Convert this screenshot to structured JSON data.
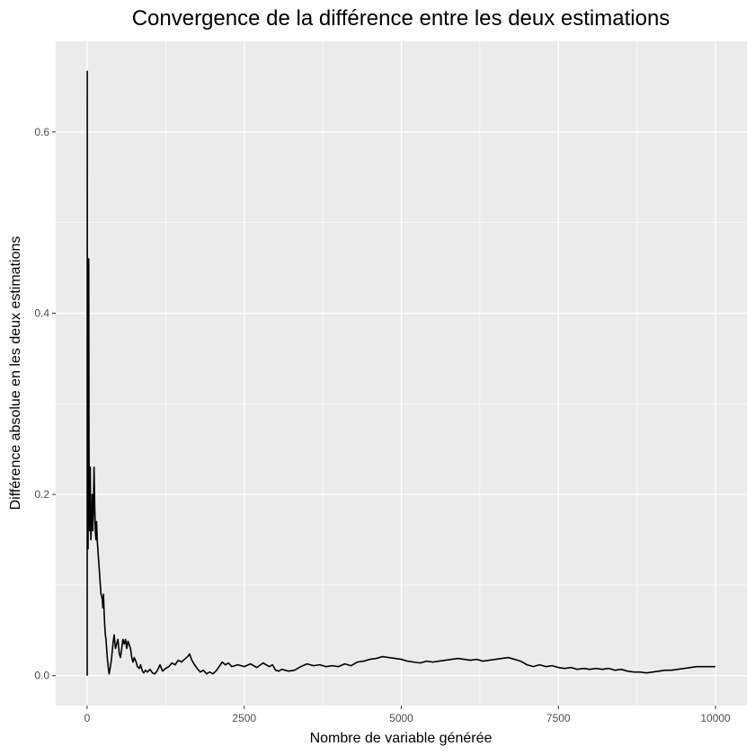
{
  "chart_data": {
    "type": "line",
    "title": "Convergence de la différence entre les deux estimations",
    "xlabel": "Nombre de variable générée",
    "ylabel": "Différence absolue en les deux estimations",
    "xlim": [
      -500,
      10500
    ],
    "ylim": [
      -0.033,
      0.7
    ],
    "x_ticks": [
      0,
      2500,
      5000,
      7500,
      10000
    ],
    "x_tick_labels": [
      "0",
      "2500",
      "5000",
      "7500",
      "10000"
    ],
    "y_ticks": [
      0.0,
      0.2,
      0.4,
      0.6
    ],
    "y_tick_labels": [
      "0.0",
      "0.2",
      "0.4",
      "0.6"
    ],
    "grid": true,
    "colors": {
      "panel": "#ebebeb",
      "grid": "#ffffff",
      "line": "#000000"
    },
    "series": [
      {
        "values_xy": [
          [
            1,
            0.0
          ],
          [
            2,
            0.667
          ],
          [
            3,
            0.333
          ],
          [
            5,
            0.2
          ],
          [
            8,
            0.15
          ],
          [
            12,
            0.25
          ],
          [
            15,
            0.14
          ],
          [
            20,
            0.32
          ],
          [
            25,
            0.46
          ],
          [
            30,
            0.25
          ],
          [
            35,
            0.18
          ],
          [
            40,
            0.16
          ],
          [
            45,
            0.2
          ],
          [
            50,
            0.23
          ],
          [
            55,
            0.17
          ],
          [
            60,
            0.15
          ],
          [
            70,
            0.17
          ],
          [
            80,
            0.2
          ],
          [
            90,
            0.16
          ],
          [
            100,
            0.18
          ],
          [
            110,
            0.23
          ],
          [
            120,
            0.19
          ],
          [
            130,
            0.16
          ],
          [
            140,
            0.15
          ],
          [
            150,
            0.17
          ],
          [
            160,
            0.15
          ],
          [
            170,
            0.14
          ],
          [
            180,
            0.13
          ],
          [
            190,
            0.12
          ],
          [
            200,
            0.11
          ],
          [
            210,
            0.1
          ],
          [
            220,
            0.09
          ],
          [
            240,
            0.085
          ],
          [
            250,
            0.075
          ],
          [
            260,
            0.09
          ],
          [
            270,
            0.07
          ],
          [
            280,
            0.055
          ],
          [
            290,
            0.045
          ],
          [
            300,
            0.04
          ],
          [
            310,
            0.03
          ],
          [
            320,
            0.02
          ],
          [
            335,
            0.01
          ],
          [
            350,
            0.002
          ],
          [
            370,
            0.01
          ],
          [
            390,
            0.02
          ],
          [
            410,
            0.035
          ],
          [
            430,
            0.045
          ],
          [
            450,
            0.03
          ],
          [
            470,
            0.035
          ],
          [
            490,
            0.04
          ],
          [
            510,
            0.025
          ],
          [
            530,
            0.02
          ],
          [
            550,
            0.03
          ],
          [
            570,
            0.04
          ],
          [
            590,
            0.035
          ],
          [
            610,
            0.04
          ],
          [
            630,
            0.03
          ],
          [
            650,
            0.038
          ],
          [
            670,
            0.034
          ],
          [
            690,
            0.03
          ],
          [
            710,
            0.02
          ],
          [
            730,
            0.015
          ],
          [
            750,
            0.02
          ],
          [
            780,
            0.015
          ],
          [
            800,
            0.01
          ],
          [
            830,
            0.008
          ],
          [
            850,
            0.012
          ],
          [
            880,
            0.005
          ],
          [
            900,
            0.003
          ],
          [
            930,
            0.006
          ],
          [
            960,
            0.004
          ],
          [
            1000,
            0.007
          ],
          [
            1040,
            0.003
          ],
          [
            1080,
            0.002
          ],
          [
            1120,
            0.006
          ],
          [
            1160,
            0.012
          ],
          [
            1200,
            0.005
          ],
          [
            1250,
            0.008
          ],
          [
            1300,
            0.01
          ],
          [
            1350,
            0.014
          ],
          [
            1400,
            0.012
          ],
          [
            1450,
            0.017
          ],
          [
            1500,
            0.015
          ],
          [
            1550,
            0.018
          ],
          [
            1600,
            0.021
          ],
          [
            1630,
            0.024
          ],
          [
            1660,
            0.018
          ],
          [
            1700,
            0.013
          ],
          [
            1750,
            0.008
          ],
          [
            1800,
            0.004
          ],
          [
            1850,
            0.006
          ],
          [
            1900,
            0.002
          ],
          [
            1950,
            0.004
          ],
          [
            2000,
            0.002
          ],
          [
            2050,
            0.005
          ],
          [
            2100,
            0.01
          ],
          [
            2150,
            0.015
          ],
          [
            2200,
            0.012
          ],
          [
            2250,
            0.014
          ],
          [
            2300,
            0.01
          ],
          [
            2400,
            0.012
          ],
          [
            2500,
            0.01
          ],
          [
            2600,
            0.013
          ],
          [
            2700,
            0.009
          ],
          [
            2800,
            0.014
          ],
          [
            2900,
            0.01
          ],
          [
            2950,
            0.012
          ],
          [
            3000,
            0.006
          ],
          [
            3050,
            0.005
          ],
          [
            3100,
            0.007
          ],
          [
            3200,
            0.005
          ],
          [
            3300,
            0.006
          ],
          [
            3400,
            0.01
          ],
          [
            3500,
            0.013
          ],
          [
            3600,
            0.011
          ],
          [
            3700,
            0.012
          ],
          [
            3800,
            0.01
          ],
          [
            3900,
            0.011
          ],
          [
            4000,
            0.01
          ],
          [
            4100,
            0.013
          ],
          [
            4200,
            0.011
          ],
          [
            4300,
            0.015
          ],
          [
            4400,
            0.016
          ],
          [
            4500,
            0.018
          ],
          [
            4600,
            0.019
          ],
          [
            4700,
            0.021
          ],
          [
            4800,
            0.02
          ],
          [
            4900,
            0.019
          ],
          [
            5000,
            0.018
          ],
          [
            5100,
            0.016
          ],
          [
            5200,
            0.015
          ],
          [
            5300,
            0.014
          ],
          [
            5400,
            0.016
          ],
          [
            5500,
            0.015
          ],
          [
            5600,
            0.016
          ],
          [
            5700,
            0.017
          ],
          [
            5800,
            0.018
          ],
          [
            5900,
            0.019
          ],
          [
            6000,
            0.018
          ],
          [
            6100,
            0.017
          ],
          [
            6200,
            0.018
          ],
          [
            6300,
            0.016
          ],
          [
            6400,
            0.017
          ],
          [
            6500,
            0.018
          ],
          [
            6600,
            0.019
          ],
          [
            6700,
            0.02
          ],
          [
            6800,
            0.018
          ],
          [
            6900,
            0.016
          ],
          [
            7000,
            0.012
          ],
          [
            7100,
            0.01
          ],
          [
            7200,
            0.012
          ],
          [
            7300,
            0.01
          ],
          [
            7400,
            0.011
          ],
          [
            7500,
            0.009
          ],
          [
            7600,
            0.008
          ],
          [
            7700,
            0.009
          ],
          [
            7800,
            0.007
          ],
          [
            7900,
            0.008
          ],
          [
            8000,
            0.007
          ],
          [
            8100,
            0.008
          ],
          [
            8200,
            0.007
          ],
          [
            8300,
            0.008
          ],
          [
            8400,
            0.006
          ],
          [
            8500,
            0.007
          ],
          [
            8600,
            0.005
          ],
          [
            8700,
            0.004
          ],
          [
            8800,
            0.004
          ],
          [
            8900,
            0.003
          ],
          [
            9000,
            0.004
          ],
          [
            9100,
            0.005
          ],
          [
            9200,
            0.006
          ],
          [
            9300,
            0.006
          ],
          [
            9400,
            0.007
          ],
          [
            9500,
            0.008
          ],
          [
            9600,
            0.009
          ],
          [
            9700,
            0.01
          ],
          [
            9800,
            0.01
          ],
          [
            9900,
            0.01
          ],
          [
            10000,
            0.01
          ]
        ]
      }
    ]
  }
}
